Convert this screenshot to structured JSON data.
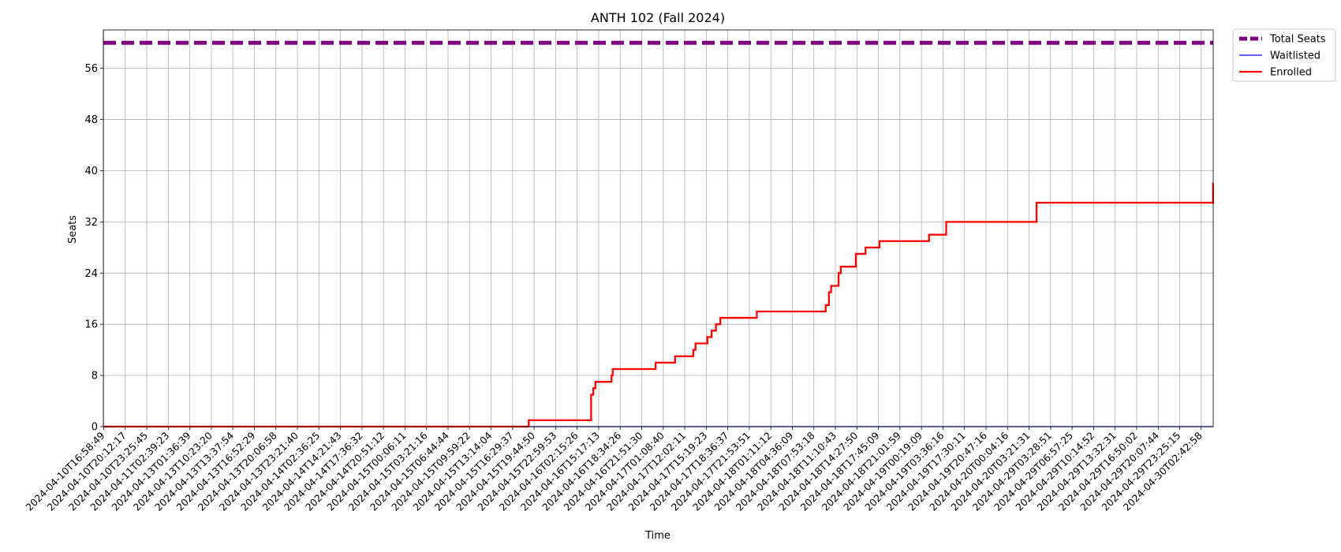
{
  "chart_data": {
    "type": "line",
    "title": "ANTH 102 (Fall 2024)",
    "xlabel": "Time",
    "ylabel": "Seats",
    "ylim": [
      0,
      62
    ],
    "yticks": [
      0,
      8,
      16,
      24,
      32,
      40,
      48,
      56
    ],
    "grid": true,
    "legend_position": "outside-top-right",
    "x_ticks": [
      "2024-04-10T16:58:49",
      "2024-04-10T20:12:17",
      "2024-04-10T23:25:45",
      "2024-04-11T02:39:23",
      "2024-04-13T01:36:39",
      "2024-04-13T10:23:20",
      "2024-04-13T13:37:54",
      "2024-04-13T16:52:29",
      "2024-04-13T20:06:58",
      "2024-04-13T23:21:40",
      "2024-04-14T02:36:25",
      "2024-04-14T14:21:43",
      "2024-04-14T17:36:32",
      "2024-04-14T20:51:12",
      "2024-04-15T00:06:11",
      "2024-04-15T03:21:16",
      "2024-04-15T06:44:44",
      "2024-04-15T09:59:22",
      "2024-04-15T13:14:04",
      "2024-04-15T16:29:37",
      "2024-04-15T19:44:50",
      "2024-04-15T22:59:53",
      "2024-04-16T02:15:26",
      "2024-04-16T15:17:13",
      "2024-04-16T18:34:26",
      "2024-04-16T21:51:30",
      "2024-04-17T01:08:40",
      "2024-04-17T12:02:11",
      "2024-04-17T15:19:23",
      "2024-04-17T18:36:37",
      "2024-04-17T21:53:51",
      "2024-04-18T01:11:12",
      "2024-04-18T04:36:09",
      "2024-04-18T07:53:18",
      "2024-04-18T11:10:43",
      "2024-04-18T14:27:50",
      "2024-04-18T17:45:09",
      "2024-04-18T21:01:59",
      "2024-04-19T00:19:09",
      "2024-04-19T03:36:16",
      "2024-04-19T17:30:11",
      "2024-04-19T20:47:16",
      "2024-04-20T00:04:16",
      "2024-04-20T03:21:31",
      "2024-04-29T03:28:51",
      "2024-04-29T06:57:25",
      "2024-04-29T10:14:52",
      "2024-04-29T13:32:31",
      "2024-04-29T16:50:02",
      "2024-04-29T20:07:44",
      "2024-04-29T23:25:15",
      "2024-04-30T02:42:58"
    ],
    "series": [
      {
        "name": "Total Seats",
        "color": "#800080",
        "style": "dashed",
        "constant": 60
      },
      {
        "name": "Waitlisted",
        "color": "#0000ff",
        "style": "solid",
        "constant": 0
      },
      {
        "name": "Enrolled",
        "color": "#ff0000",
        "style": "step",
        "points": [
          [
            0,
            0
          ],
          [
            19.7,
            0
          ],
          [
            19.75,
            1
          ],
          [
            22.6,
            1
          ],
          [
            22.65,
            5
          ],
          [
            22.75,
            6
          ],
          [
            22.85,
            7
          ],
          [
            23.5,
            7
          ],
          [
            23.6,
            8
          ],
          [
            23.65,
            9
          ],
          [
            25.6,
            9
          ],
          [
            25.65,
            10
          ],
          [
            26.5,
            10
          ],
          [
            26.55,
            11
          ],
          [
            27.35,
            11
          ],
          [
            27.4,
            12
          ],
          [
            27.5,
            13
          ],
          [
            28.0,
            13
          ],
          [
            28.05,
            14
          ],
          [
            28.2,
            14
          ],
          [
            28.25,
            15
          ],
          [
            28.4,
            15
          ],
          [
            28.45,
            16
          ],
          [
            28.6,
            16
          ],
          [
            28.65,
            17
          ],
          [
            30.3,
            17
          ],
          [
            30.35,
            18
          ],
          [
            33.5,
            18
          ],
          [
            33.55,
            19
          ],
          [
            33.65,
            19
          ],
          [
            33.7,
            21
          ],
          [
            33.8,
            22
          ],
          [
            34.1,
            22
          ],
          [
            34.15,
            24
          ],
          [
            34.25,
            25
          ],
          [
            34.9,
            25
          ],
          [
            34.95,
            27
          ],
          [
            35.35,
            27
          ],
          [
            35.4,
            28
          ],
          [
            36.0,
            28
          ],
          [
            36.05,
            29
          ],
          [
            38.3,
            29
          ],
          [
            38.35,
            30
          ],
          [
            39.1,
            30
          ],
          [
            39.15,
            32
          ],
          [
            43.3,
            32
          ],
          [
            43.35,
            35
          ],
          [
            51.5,
            35
          ],
          [
            51.55,
            38
          ]
        ]
      }
    ]
  }
}
